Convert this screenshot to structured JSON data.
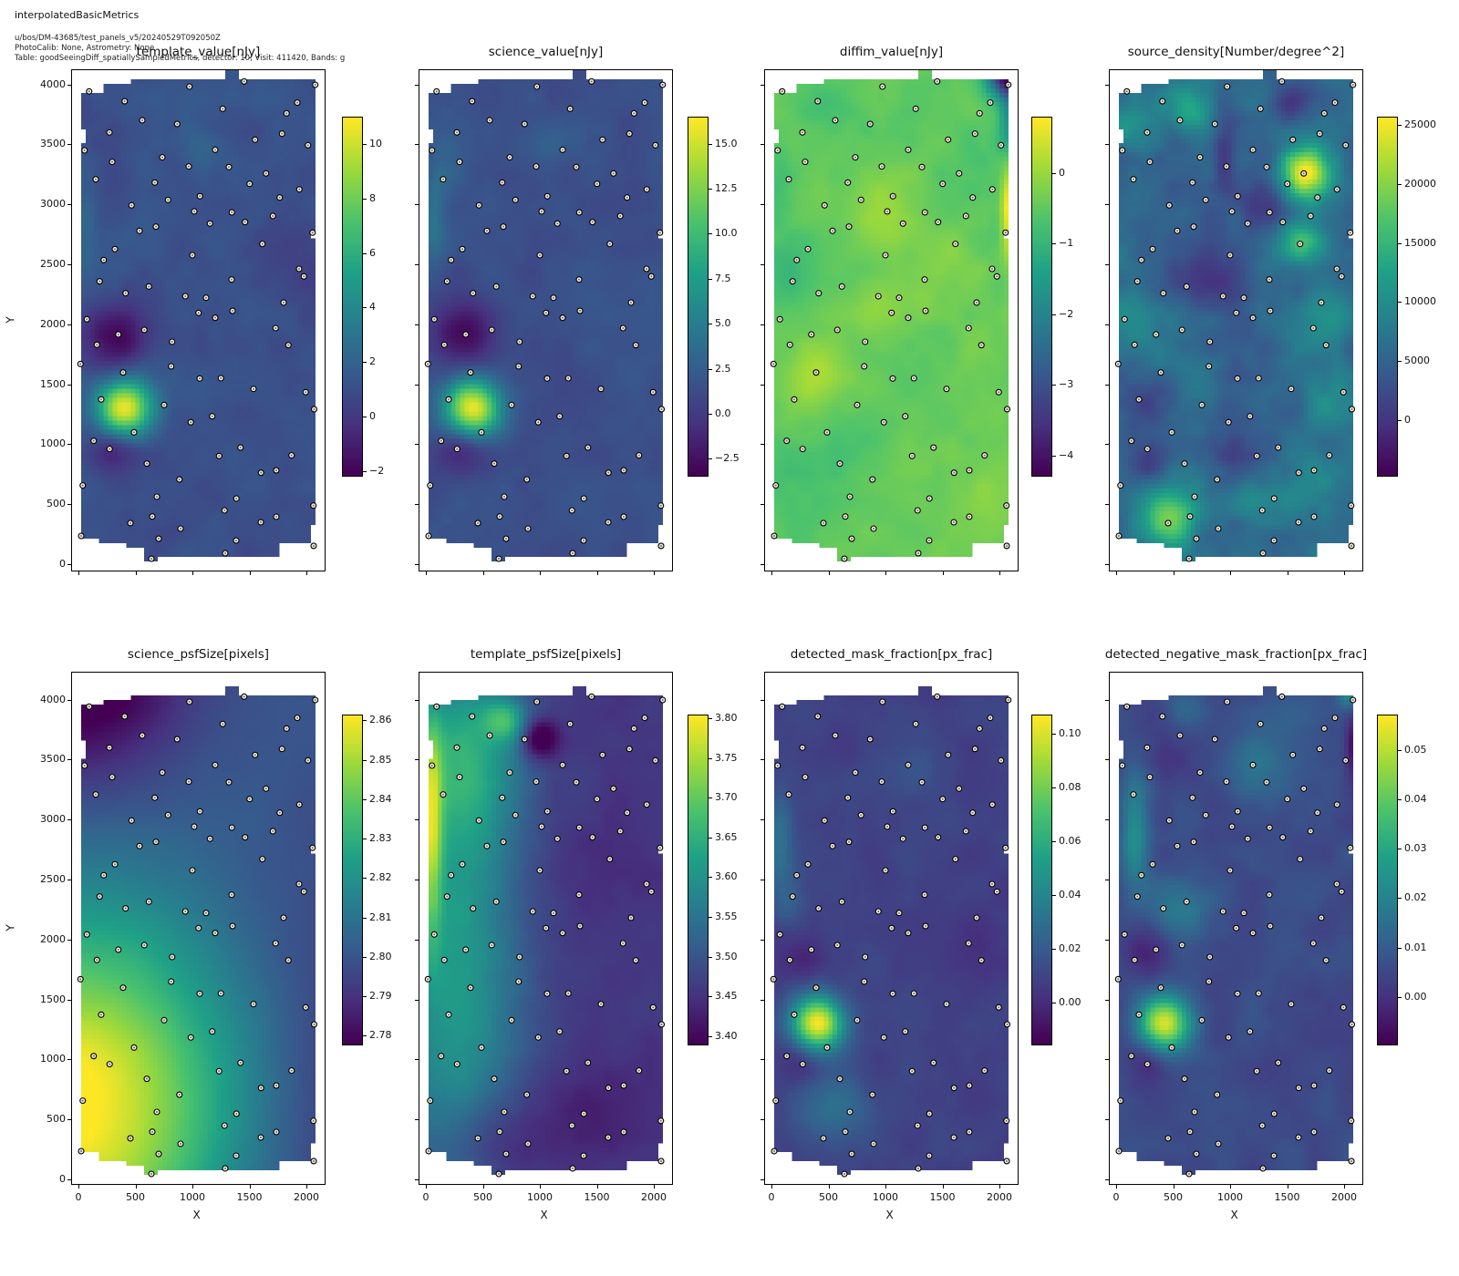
{
  "header": {
    "title": "interpolatedBasicMetrics",
    "lines": [
      "u/bos/DM-43685/test_panels_v5/20240529T092050Z",
      "PhotoCalib: None, Astrometry: None",
      "Table: goodSeeingDiff_spatiallySampledMetrics, detector: 10, Visit: 411420, Bands: g"
    ]
  },
  "chart_data": {
    "type": "heatmap",
    "layout": "2-rows-x-4-cols",
    "xlabel": "X",
    "ylabel": "Y",
    "x_ticks": [
      0,
      500,
      1000,
      1500,
      2000
    ],
    "y_ticks": [
      0,
      500,
      1000,
      1500,
      2000,
      2500,
      3000,
      3500,
      4000
    ],
    "xlim": [
      -64,
      2168
    ],
    "ylim": [
      -60,
      4130
    ],
    "grid": false,
    "colormap": {
      "name": "viridis",
      "anchors": [
        [
          0.0,
          68,
          1,
          84
        ],
        [
          0.14,
          70,
          50,
          127
        ],
        [
          0.29,
          54,
          92,
          141
        ],
        [
          0.43,
          39,
          127,
          142
        ],
        [
          0.57,
          31,
          161,
          135
        ],
        [
          0.71,
          74,
          194,
          109
        ],
        [
          0.86,
          159,
          218,
          58
        ],
        [
          1.0,
          253,
          231,
          37
        ]
      ]
    },
    "marker": {
      "fill": "#f0e9d8",
      "edge": "#000000",
      "radius": 3
    },
    "mask_polygon": [
      [
        8,
        3950
      ],
      [
        230,
        3950
      ],
      [
        230,
        4010
      ],
      [
        460,
        4010
      ],
      [
        460,
        4060
      ],
      [
        1290,
        4060
      ],
      [
        1290,
        4115
      ],
      [
        1430,
        4115
      ],
      [
        1430,
        4060
      ],
      [
        2090,
        4060
      ],
      [
        2090,
        2770
      ],
      [
        2030,
        2770
      ],
      [
        2030,
        2700
      ],
      [
        2090,
        2700
      ],
      [
        2090,
        310
      ],
      [
        2050,
        310
      ],
      [
        2050,
        155
      ],
      [
        1760,
        155
      ],
      [
        1760,
        60
      ],
      [
        700,
        60
      ],
      [
        700,
        25
      ],
      [
        560,
        25
      ],
      [
        560,
        115
      ],
      [
        420,
        115
      ],
      [
        420,
        150
      ],
      [
        180,
        150
      ],
      [
        180,
        205
      ],
      [
        8,
        205
      ],
      [
        8,
        3520
      ],
      [
        75,
        3520
      ],
      [
        75,
        3650
      ],
      [
        8,
        3650
      ]
    ],
    "sample_points": [
      [
        86,
        3950
      ],
      [
        1446,
        4033
      ],
      [
        2070,
        4005
      ],
      [
        966,
        3990
      ],
      [
        398,
        3868
      ],
      [
        552,
        3709
      ],
      [
        858,
        3678
      ],
      [
        1258,
        3805
      ],
      [
        1818,
        3767
      ],
      [
        1912,
        3856
      ],
      [
        264,
        3608
      ],
      [
        46,
        3458
      ],
      [
        288,
        3362
      ],
      [
        1542,
        3547
      ],
      [
        1778,
        3597
      ],
      [
        2006,
        3501
      ],
      [
        1192,
        3463
      ],
      [
        728,
        3400
      ],
      [
        960,
        3324
      ],
      [
        1312,
        3319
      ],
      [
        1638,
        3266
      ],
      [
        144,
        3217
      ],
      [
        662,
        3190
      ],
      [
        458,
        3000
      ],
      [
        778,
        3045
      ],
      [
        1058,
        3076
      ],
      [
        1494,
        3179
      ],
      [
        1930,
        3133
      ],
      [
        1758,
        3065
      ],
      [
        1008,
        2949
      ],
      [
        1338,
        2941
      ],
      [
        1698,
        2911
      ],
      [
        2046,
        2772
      ],
      [
        528,
        2787
      ],
      [
        672,
        2822
      ],
      [
        1146,
        2848
      ],
      [
        1454,
        2860
      ],
      [
        312,
        2635
      ],
      [
        214,
        2544
      ],
      [
        992,
        2584
      ],
      [
        1606,
        2678
      ],
      [
        1928,
        2470
      ],
      [
        1970,
        2407
      ],
      [
        178,
        2366
      ],
      [
        610,
        2323
      ],
      [
        406,
        2267
      ],
      [
        930,
        2242
      ],
      [
        1112,
        2229
      ],
      [
        1336,
        2381
      ],
      [
        1792,
        2189
      ],
      [
        66,
        2050
      ],
      [
        342,
        1923
      ],
      [
        570,
        1961
      ],
      [
        814,
        1862
      ],
      [
        1046,
        2103
      ],
      [
        1192,
        2062
      ],
      [
        1344,
        2120
      ],
      [
        1722,
        1976
      ],
      [
        1834,
        1834
      ],
      [
        154,
        1837
      ],
      [
        10,
        1677
      ],
      [
        384,
        1606
      ],
      [
        806,
        1657
      ],
      [
        1056,
        1556
      ],
      [
        1242,
        1558
      ],
      [
        1528,
        1469
      ],
      [
        1986,
        1442
      ],
      [
        2060,
        1300
      ],
      [
        192,
        1381
      ],
      [
        744,
        1335
      ],
      [
        1166,
        1241
      ],
      [
        978,
        1191
      ],
      [
        480,
        1107
      ],
      [
        126,
        1036
      ],
      [
        266,
        968
      ],
      [
        592,
        846
      ],
      [
        878,
        714
      ],
      [
        1226,
        910
      ],
      [
        1414,
        980
      ],
      [
        1594,
        770
      ],
      [
        1728,
        790
      ],
      [
        1862,
        915
      ],
      [
        30,
        664
      ],
      [
        680,
        570
      ],
      [
        1378,
        555
      ],
      [
        2054,
        496
      ],
      [
        640,
        405
      ],
      [
        1274,
        456
      ],
      [
        16,
        243
      ],
      [
        448,
        350
      ],
      [
        696,
        220
      ],
      [
        888,
        304
      ],
      [
        632,
        53
      ],
      [
        1280,
        99
      ],
      [
        1376,
        205
      ],
      [
        1592,
        357
      ],
      [
        1728,
        403
      ],
      [
        2056,
        160
      ]
    ],
    "panels": [
      {
        "id": "template_value",
        "title": "template_value[nJy]",
        "vmin": -2.2,
        "vmax": 11.0,
        "colorbar_tick_values": [
          10,
          8,
          6,
          4,
          2,
          0,
          -2
        ],
        "colorbar_tick_labels": [
          "10",
          "8",
          "6",
          "4",
          "2",
          "0",
          "−2"
        ],
        "base": 1.1,
        "noise": 0.55,
        "noise_scale": 300,
        "seed": 1,
        "blobs": [
          [
            400,
            1300,
            9.6,
            170
          ],
          [
            330,
            1900,
            -3.1,
            200
          ],
          [
            300,
            960,
            -2.6,
            150
          ],
          [
            60,
            2850,
            1.3,
            80,
            300
          ],
          [
            1080,
            3480,
            0.9,
            140
          ],
          [
            1900,
            2500,
            -0.6,
            250
          ]
        ]
      },
      {
        "id": "science_value",
        "title": "science_value[nJy]",
        "vmin": -3.5,
        "vmax": 16.5,
        "colorbar_tick_values": [
          15,
          12.5,
          10,
          7.5,
          5,
          2.5,
          0,
          -2.5
        ],
        "colorbar_tick_labels": [
          "15.0",
          "12.5",
          "10.0",
          "7.5",
          "5.0",
          "2.5",
          "0.0",
          "−2.5"
        ],
        "base": 1.4,
        "noise": 0.7,
        "noise_scale": 300,
        "seed": 2,
        "blobs": [
          [
            400,
            1300,
            14.8,
            170
          ],
          [
            330,
            1900,
            -4.4,
            200
          ],
          [
            300,
            960,
            -3.4,
            150
          ],
          [
            60,
            2900,
            2.6,
            80,
            280
          ],
          [
            1080,
            3480,
            1.4,
            140
          ],
          [
            150,
            3300,
            1.5,
            100,
            200
          ]
        ]
      },
      {
        "id": "diffim_value",
        "title": "diffim_value[nJy]",
        "vmin": -4.3,
        "vmax": 0.8,
        "colorbar_tick_values": [
          0,
          -1,
          -2,
          -3,
          -4
        ],
        "colorbar_tick_labels": [
          "0",
          "−1",
          "−2",
          "−3",
          "−4"
        ],
        "base": -0.45,
        "noise": 0.22,
        "noise_scale": 300,
        "seed": 3,
        "blobs": [
          [
            2075,
            4090,
            -3.6,
            130
          ],
          [
            2085,
            3700,
            -1.1,
            60,
            250
          ],
          [
            2088,
            2950,
            1.3,
            45,
            300
          ],
          [
            390,
            1590,
            0.55,
            180
          ],
          [
            1000,
            2950,
            0.45,
            190
          ],
          [
            1250,
            2250,
            0.32,
            170
          ],
          [
            1600,
            2650,
            0.3,
            160
          ],
          [
            900,
            2100,
            0.28,
            150
          ],
          [
            1900,
            500,
            0.35,
            200
          ],
          [
            1700,
            1500,
            0.22,
            180
          ],
          [
            150,
            2450,
            -0.35,
            200
          ],
          [
            300,
            750,
            -0.3,
            250
          ],
          [
            500,
            3800,
            -0.28,
            180
          ],
          [
            60,
            3300,
            -0.3,
            100,
            250
          ],
          [
            1850,
            3300,
            -0.25,
            180
          ],
          [
            700,
            1000,
            -0.2,
            180
          ]
        ]
      },
      {
        "id": "source_density",
        "title": "source_density[Number/degree^2]",
        "vmin": -4800,
        "vmax": 25700,
        "colorbar_tick_values": [
          25000,
          20000,
          15000,
          10000,
          5000,
          0
        ],
        "colorbar_tick_labels": [
          "25000",
          "20000",
          "15000",
          "10000",
          "5000",
          "0"
        ],
        "base": 5600,
        "noise": 2600,
        "noise_scale": 260,
        "seed": 4,
        "blobs": [
          [
            1670,
            3260,
            19000,
            150
          ],
          [
            1610,
            2690,
            11500,
            140
          ],
          [
            470,
            400,
            13500,
            180
          ],
          [
            640,
            3820,
            7500,
            140
          ],
          [
            160,
            3650,
            5000,
            150
          ],
          [
            60,
            2100,
            4500,
            180
          ],
          [
            1850,
            2050,
            4500,
            200
          ],
          [
            1880,
            1350,
            3500,
            180
          ],
          [
            1250,
            520,
            5000,
            150
          ],
          [
            550,
            1650,
            3000,
            180
          ],
          [
            1700,
            700,
            3000,
            200
          ],
          [
            1540,
            3850,
            -5000,
            140
          ],
          [
            950,
            3430,
            -4800,
            70,
            260
          ],
          [
            1280,
            2960,
            -6000,
            160
          ],
          [
            800,
            2400,
            -4500,
            260
          ],
          [
            300,
            1350,
            -4200,
            200
          ],
          [
            1000,
            950,
            -3800,
            200
          ],
          [
            312,
            890,
            -4200,
            150
          ]
        ]
      },
      {
        "id": "science_psfSize",
        "title": "science_psfSize[pixels]",
        "vmin": 2.7775,
        "vmax": 2.8615,
        "colorbar_tick_values": [
          2.86,
          2.85,
          2.84,
          2.83,
          2.82,
          2.81,
          2.8,
          2.79,
          2.78
        ],
        "colorbar_tick_labels": [
          "2.86",
          "2.85",
          "2.84",
          "2.83",
          "2.82",
          "2.81",
          "2.80",
          "2.79",
          "2.78"
        ],
        "base": 2.802,
        "noise": 0.0012,
        "noise_scale": 500,
        "seed": 5,
        "blobs": [
          [
            -100,
            600,
            0.062,
            1100
          ],
          [
            50,
            4200,
            -0.03,
            650
          ],
          [
            2300,
            300,
            -0.014,
            800,
            1800
          ]
        ]
      },
      {
        "id": "template_psfSize",
        "title": "template_psfSize[pixels]",
        "vmin": 3.388,
        "vmax": 3.805,
        "colorbar_tick_values": [
          3.8,
          3.75,
          3.7,
          3.65,
          3.6,
          3.55,
          3.5,
          3.45,
          3.4
        ],
        "colorbar_tick_labels": [
          "3.80",
          "3.75",
          "3.70",
          "3.65",
          "3.60",
          "3.55",
          "3.50",
          "3.45",
          "3.40"
        ],
        "base": 3.455,
        "noise": 0.012,
        "noise_scale": 280,
        "seed": 6,
        "blobs": [
          [
            250,
            1800,
            0.16,
            420,
            1600
          ],
          [
            350,
            3500,
            0.12,
            350,
            500
          ],
          [
            40,
            2950,
            0.19,
            70,
            650
          ],
          [
            700,
            3830,
            0.13,
            130
          ],
          [
            1000,
            3680,
            -0.13,
            120
          ],
          [
            600,
            300,
            -0.06,
            350,
            250
          ],
          [
            1500,
            600,
            -0.03,
            400,
            300
          ],
          [
            1600,
            2600,
            -0.02,
            300
          ]
        ]
      },
      {
        "id": "detected_mask_fraction",
        "title": "detected_mask_fraction[px_frac]",
        "vmin": -0.016,
        "vmax": 0.107,
        "colorbar_tick_values": [
          0.1,
          0.08,
          0.06,
          0.04,
          0.02,
          0.0
        ],
        "colorbar_tick_labels": [
          "0.10",
          "0.08",
          "0.06",
          "0.04",
          "0.02",
          "0.00"
        ],
        "base": 0.008,
        "noise": 0.0045,
        "noise_scale": 300,
        "seed": 7,
        "blobs": [
          [
            400,
            1300,
            0.096,
            160
          ],
          [
            60,
            2850,
            0.024,
            80,
            300
          ],
          [
            550,
            600,
            0.02,
            220
          ],
          [
            1250,
            3500,
            0.01,
            200
          ],
          [
            150,
            2300,
            0.012,
            100,
            200
          ],
          [
            260,
            1850,
            -0.013,
            160
          ],
          [
            260,
            1000,
            -0.012,
            130
          ],
          [
            1900,
            2000,
            -0.004,
            300
          ]
        ]
      },
      {
        "id": "detected_negative_mask_fraction",
        "title": "detected_negative_mask_fraction[px_frac]",
        "vmin": -0.0098,
        "vmax": 0.0571,
        "colorbar_tick_values": [
          0.05,
          0.04,
          0.03,
          0.02,
          0.01,
          0.0
        ],
        "colorbar_tick_labels": [
          "0.05",
          "0.04",
          "0.03",
          "0.02",
          "0.01",
          "0.00"
        ],
        "base": 0.0055,
        "noise": 0.003,
        "noise_scale": 300,
        "seed": 8,
        "blobs": [
          [
            420,
            1300,
            0.047,
            160
          ],
          [
            160,
            2900,
            0.018,
            90,
            350
          ],
          [
            560,
            2270,
            0.013,
            180
          ],
          [
            1230,
            3450,
            0.01,
            200
          ],
          [
            2070,
            4080,
            0.02,
            80,
            120
          ],
          [
            2085,
            3650,
            -0.011,
            50,
            260
          ],
          [
            250,
            1900,
            -0.008,
            150
          ],
          [
            250,
            1000,
            -0.008,
            130
          ],
          [
            450,
            3550,
            -0.006,
            200
          ],
          [
            1600,
            3900,
            0.007,
            200,
            120
          ],
          [
            600,
            3900,
            0.006,
            150
          ]
        ]
      }
    ]
  }
}
